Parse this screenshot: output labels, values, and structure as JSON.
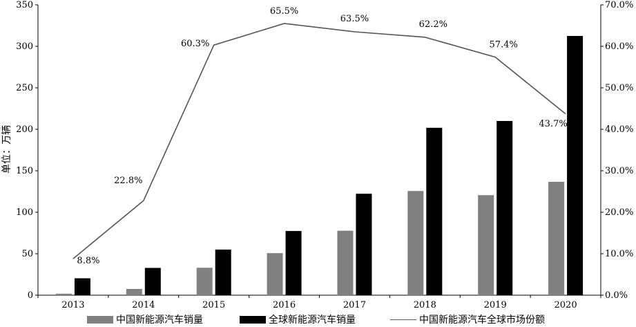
{
  "chart_data": {
    "type": "bar",
    "categories": [
      "2013",
      "2014",
      "2015",
      "2016",
      "2017",
      "2018",
      "2019",
      "2020"
    ],
    "series": [
      {
        "name": "中国新能源汽车销量",
        "type": "bar",
        "axis": "left",
        "color": "#808080",
        "values": [
          1.8,
          7.5,
          33.1,
          50.7,
          77.7,
          125.6,
          120.6,
          136.7
        ]
      },
      {
        "name": "全球新能源汽车销量",
        "type": "bar",
        "axis": "left",
        "color": "#000000",
        "values": [
          20.4,
          32.9,
          55.0,
          77.4,
          122.3,
          201.8,
          210.0,
          312.5
        ]
      },
      {
        "name": "中国新能源汽车全球市场份额",
        "type": "line",
        "axis": "right",
        "color": "#555555",
        "values": [
          8.8,
          22.8,
          60.3,
          65.5,
          63.5,
          62.2,
          57.4,
          43.7
        ],
        "labels": [
          "8.8%",
          "22.8%",
          "60.3%",
          "65.5%",
          "63.5%",
          "62.2%",
          "57.4%",
          "43.7%"
        ]
      }
    ],
    "ylabel": "单位：万辆",
    "ylim": [
      0,
      350
    ],
    "y_ticks": [
      "0",
      "50",
      "100",
      "150",
      "200",
      "250",
      "300",
      "350"
    ],
    "y2lim": [
      0,
      70
    ],
    "y2_ticks": [
      "0.0%",
      "10.0%",
      "20.0%",
      "30.0%",
      "40.0%",
      "50.0%",
      "60.0%",
      "70.0%"
    ],
    "legend_position": "bottom",
    "grid": false
  }
}
